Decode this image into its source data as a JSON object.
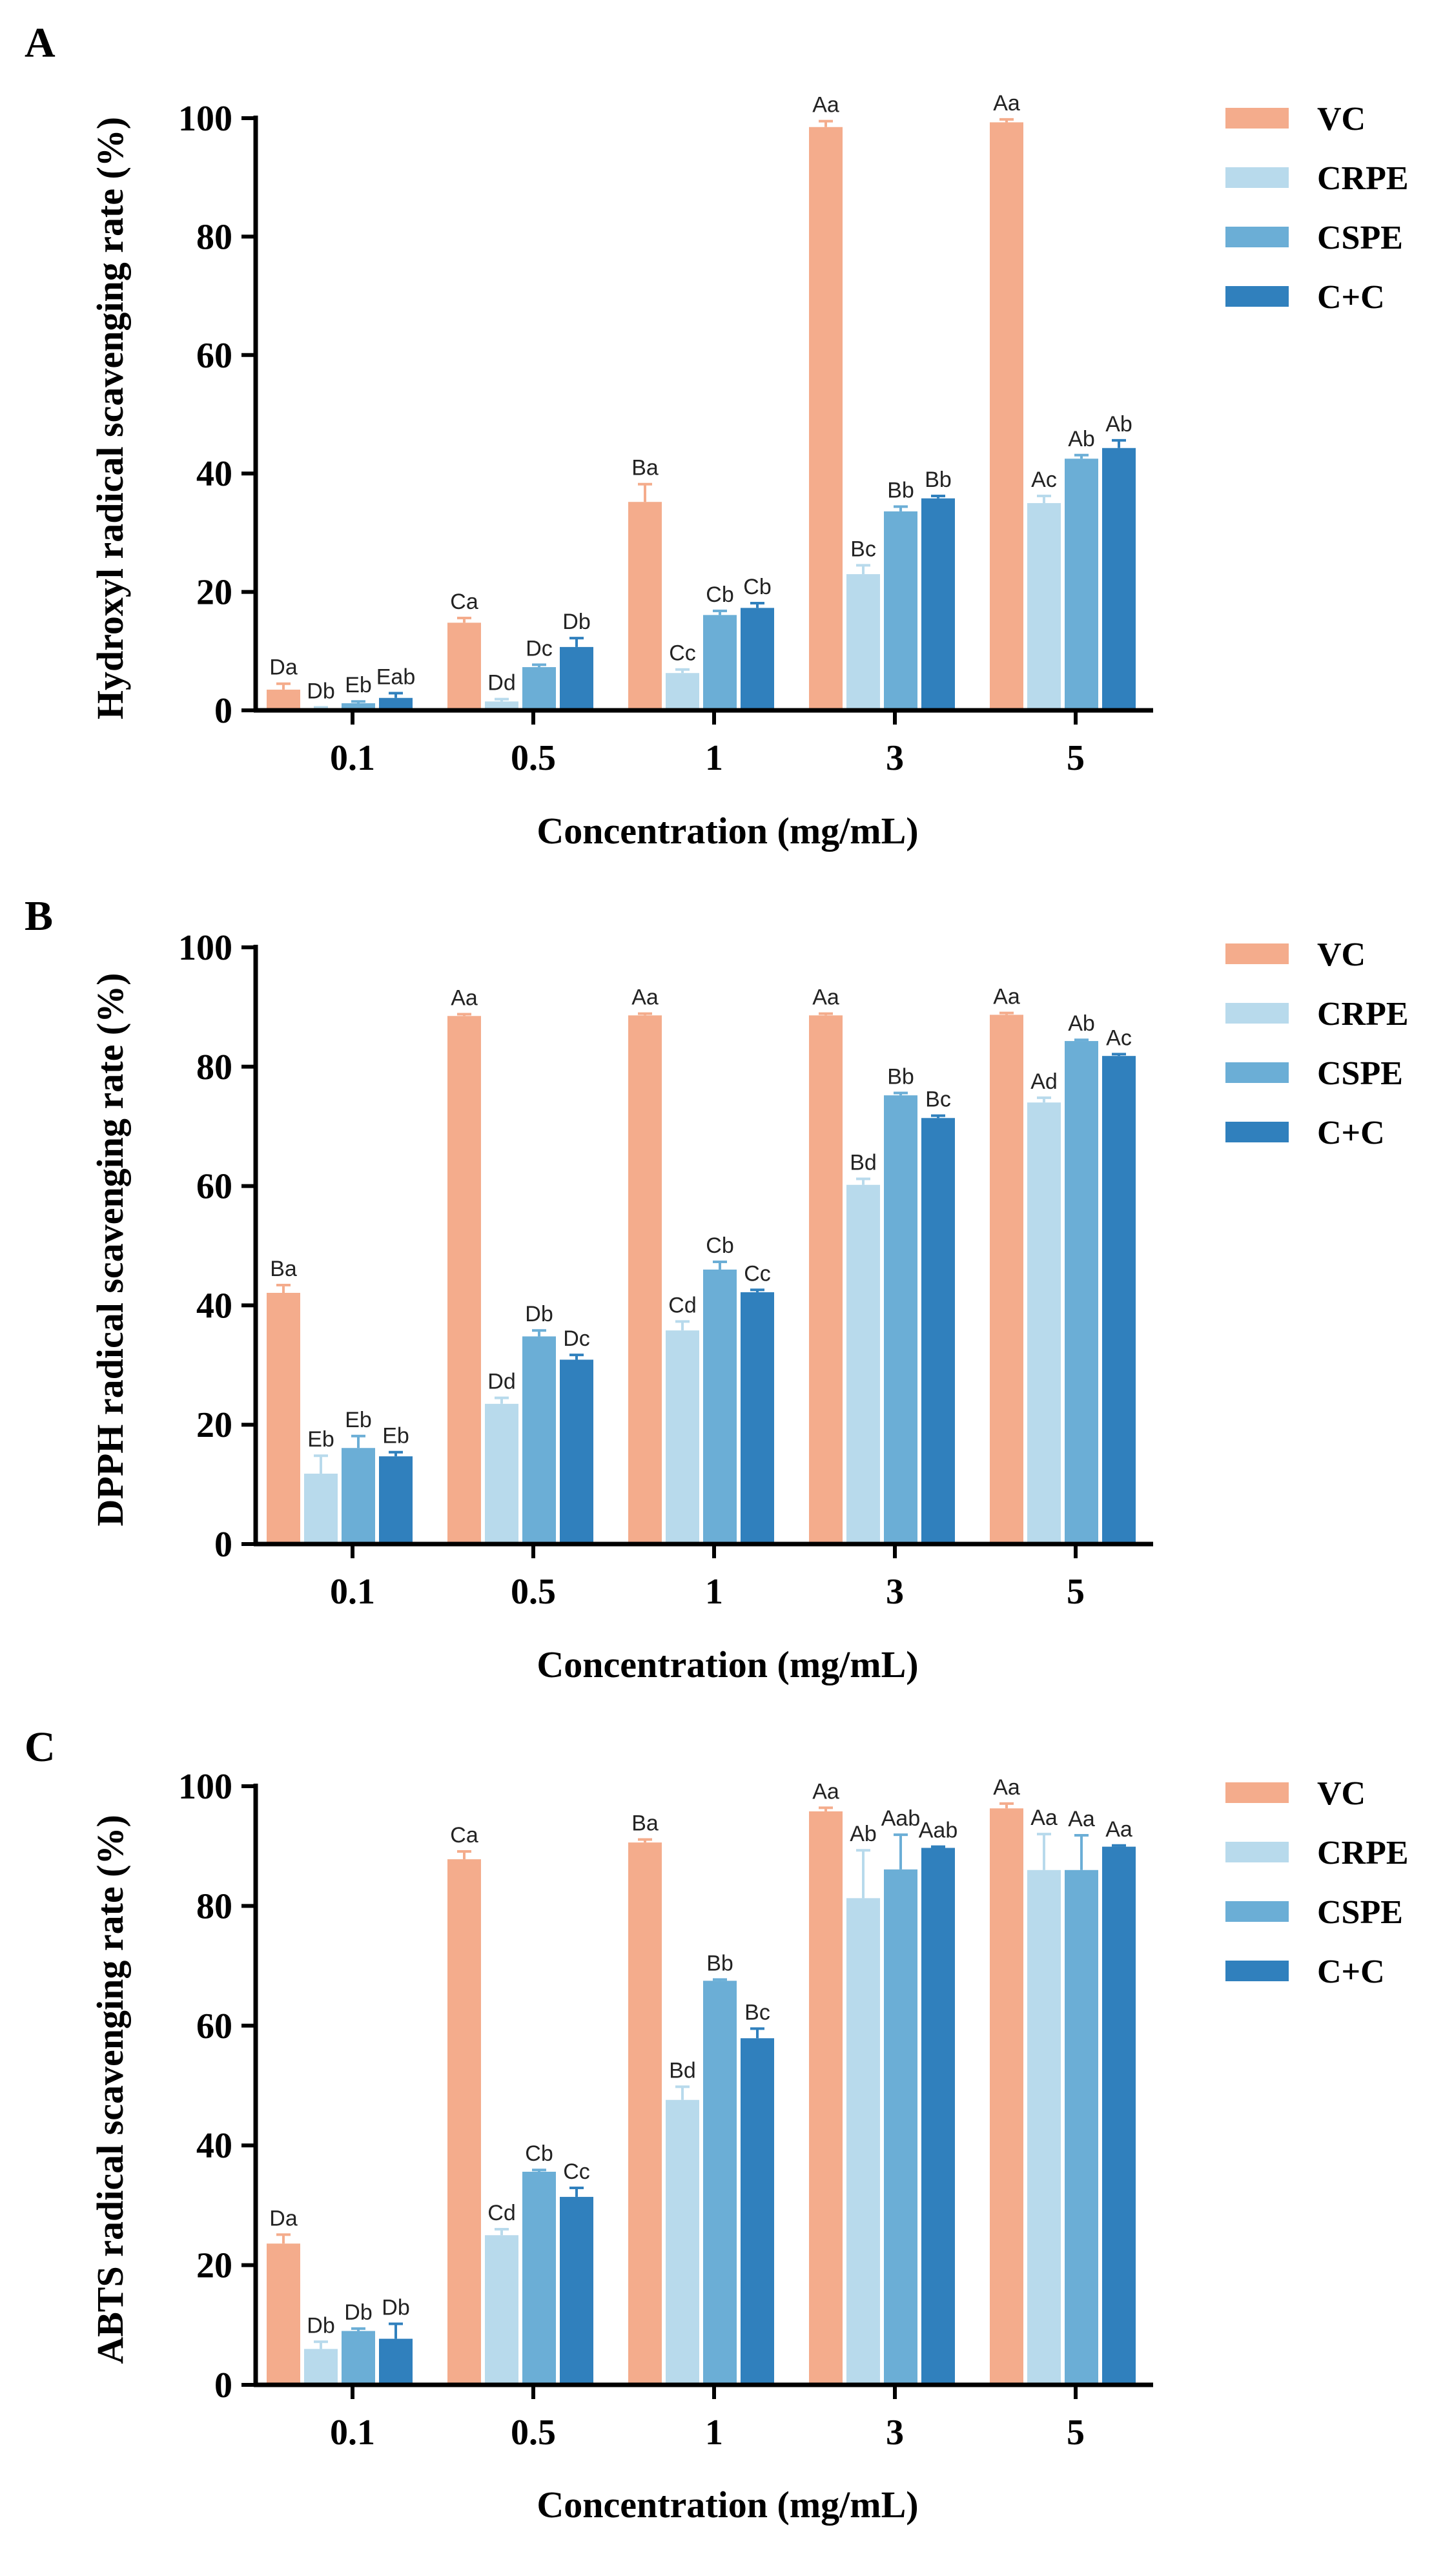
{
  "chart_data": [
    {
      "type": "bar",
      "panel": "A",
      "categories": [
        "0.1",
        "0.5",
        "1",
        "3",
        "5"
      ],
      "xlabel": "Concentration (mg/mL)",
      "ylabel": "Hydroxyl radical scavenging rate (%)",
      "ylim": [
        0,
        100
      ],
      "yticks": [
        0,
        20,
        40,
        60,
        80,
        100
      ],
      "legend_position": "top-right",
      "series": [
        {
          "name": "VC",
          "color": "#F4AC8C",
          "values": [
            3.5,
            14.8,
            35.2,
            98.5,
            99.3
          ],
          "errors": [
            1.0,
            0.8,
            3.0,
            1.0,
            0.5
          ],
          "labels": [
            "Da",
            "Ca",
            "Ba",
            "Aa",
            "Aa"
          ]
        },
        {
          "name": "CRPE",
          "color": "#B8DAEC",
          "values": [
            0.3,
            1.5,
            6.3,
            23.0,
            35.0
          ],
          "errors": [
            0.2,
            0.4,
            0.6,
            1.5,
            1.2
          ],
          "labels": [
            "Db",
            "Dd",
            "Cc",
            "Bc",
            "Ac"
          ]
        },
        {
          "name": "CSPE",
          "color": "#6BAED6",
          "values": [
            1.2,
            7.3,
            16.1,
            33.6,
            42.5
          ],
          "errors": [
            0.3,
            0.4,
            0.7,
            0.8,
            0.6
          ],
          "labels": [
            "Eb",
            "Dc",
            "Cb",
            "Bb",
            "Ab"
          ]
        },
        {
          "name": "C+C",
          "color": "#3080BD",
          "values": [
            2.1,
            10.7,
            17.3,
            35.8,
            44.3
          ],
          "errors": [
            0.8,
            1.5,
            0.8,
            0.4,
            1.3
          ],
          "labels": [
            "Eab",
            "Db",
            "Cb",
            "Bb",
            "Ab"
          ]
        }
      ]
    },
    {
      "type": "bar",
      "panel": "B",
      "categories": [
        "0.1",
        "0.5",
        "1",
        "3",
        "5"
      ],
      "xlabel": "Concentration (mg/mL)",
      "ylabel": "DPPH radical scavenging rate (%)",
      "ylim": [
        0,
        100
      ],
      "yticks": [
        0,
        20,
        40,
        60,
        80,
        100
      ],
      "legend_position": "top-right",
      "series": [
        {
          "name": "VC",
          "color": "#F4AC8C",
          "values": [
            42.1,
            88.5,
            88.6,
            88.6,
            88.7
          ],
          "errors": [
            1.3,
            0.3,
            0.3,
            0.3,
            0.3
          ],
          "labels": [
            "Ba",
            "Aa",
            "Aa",
            "Aa",
            "Aa"
          ]
        },
        {
          "name": "CRPE",
          "color": "#B8DAEC",
          "values": [
            11.8,
            23.5,
            35.8,
            60.2,
            74.0
          ],
          "errors": [
            3.0,
            1.0,
            1.5,
            1.0,
            0.8
          ],
          "labels": [
            "Eb",
            "Dd",
            "Cd",
            "Bd",
            "Ad"
          ]
        },
        {
          "name": "CSPE",
          "color": "#6BAED6",
          "values": [
            16.1,
            34.8,
            46.0,
            75.2,
            84.3
          ],
          "errors": [
            2.0,
            1.0,
            1.3,
            0.4,
            0.2
          ],
          "labels": [
            "Eb",
            "Db",
            "Cb",
            "Bb",
            "Ab"
          ]
        },
        {
          "name": "C+C",
          "color": "#3080BD",
          "values": [
            14.7,
            30.9,
            42.2,
            71.4,
            81.8
          ],
          "errors": [
            0.7,
            0.8,
            0.4,
            0.4,
            0.3
          ],
          "labels": [
            "Eb",
            "Dc",
            "Cc",
            "Bc",
            "Ac"
          ]
        }
      ]
    },
    {
      "type": "bar",
      "panel": "C",
      "categories": [
        "0.1",
        "0.5",
        "1",
        "3",
        "5"
      ],
      "xlabel": "Concentration (mg/mL)",
      "ylabel": "ABTS radical scavenging rate (%)",
      "ylim": [
        0,
        100
      ],
      "yticks": [
        0,
        20,
        40,
        60,
        80,
        100
      ],
      "legend_position": "top-right",
      "series": [
        {
          "name": "VC",
          "color": "#F4AC8C",
          "values": [
            23.6,
            87.8,
            90.6,
            95.8,
            96.3
          ],
          "errors": [
            1.5,
            1.3,
            0.5,
            0.6,
            0.8
          ],
          "labels": [
            "Da",
            "Ca",
            "Ba",
            "Aa",
            "Aa"
          ]
        },
        {
          "name": "CRPE",
          "color": "#B8DAEC",
          "values": [
            6.0,
            25.0,
            47.6,
            81.3,
            86.0
          ],
          "errors": [
            1.2,
            1.0,
            2.2,
            8.0,
            6.0
          ],
          "labels": [
            "Db",
            "Cd",
            "Bd",
            "Ab",
            "Aa"
          ]
        },
        {
          "name": "CSPE",
          "color": "#6BAED6",
          "values": [
            9.0,
            35.6,
            67.5,
            86.1,
            86.0
          ],
          "errors": [
            0.4,
            0.3,
            0.2,
            5.8,
            5.8
          ],
          "labels": [
            "Db",
            "Cb",
            "Bb",
            "Aab",
            "Aa"
          ]
        },
        {
          "name": "C+C",
          "color": "#3080BD",
          "values": [
            7.7,
            31.4,
            57.9,
            89.7,
            89.9
          ],
          "errors": [
            2.5,
            1.5,
            1.6,
            0.2,
            0.2
          ],
          "labels": [
            "Db",
            "Cc",
            "Bc",
            "Aab",
            "Aa"
          ]
        }
      ]
    }
  ]
}
